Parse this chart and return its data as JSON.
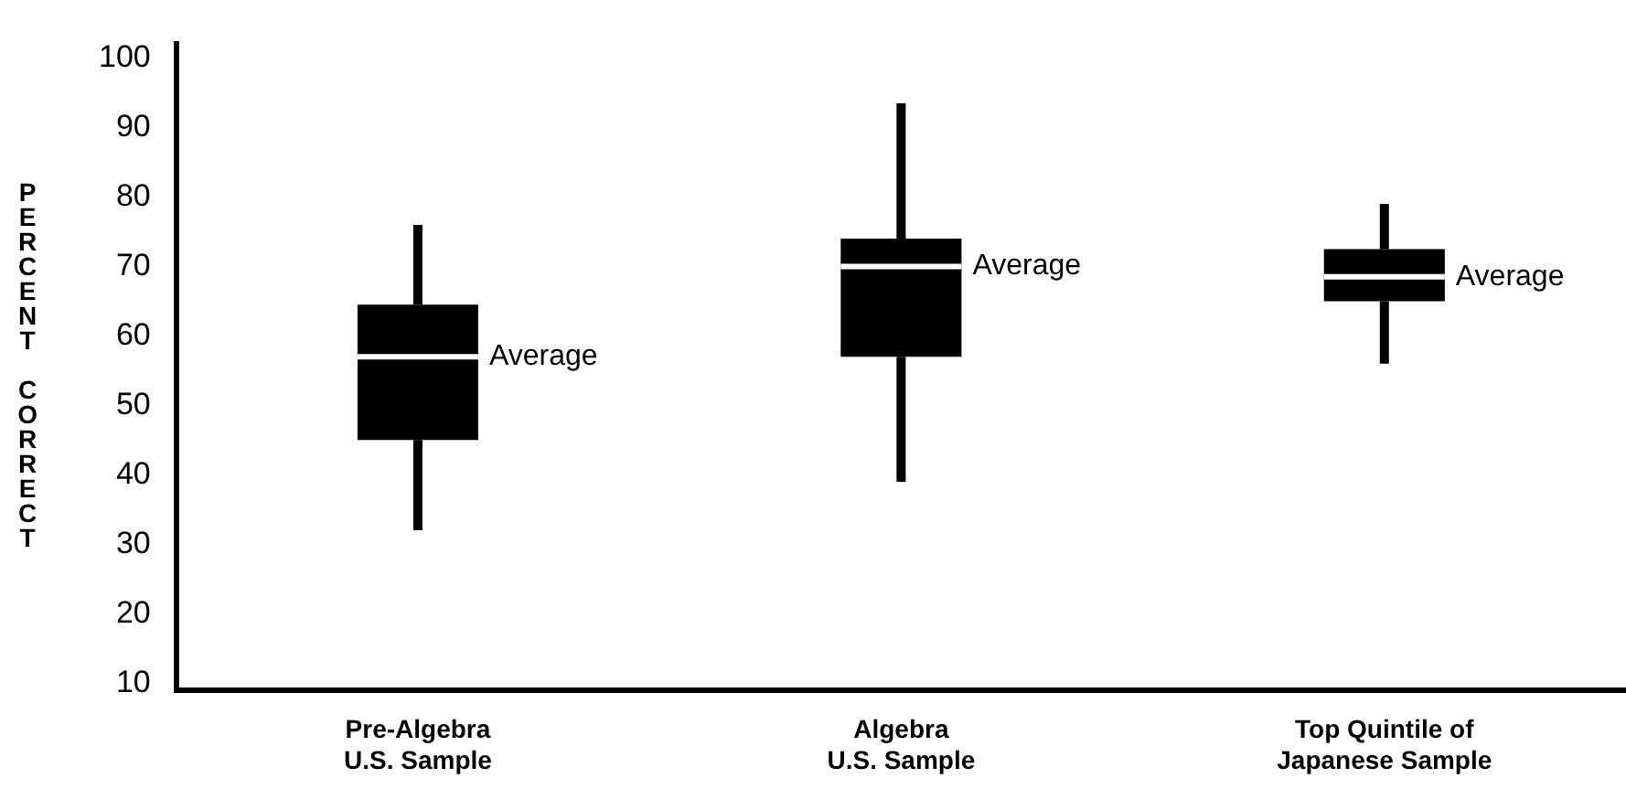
{
  "chart_data": {
    "type": "box",
    "ylabel": "PERCENT CORRECT",
    "categories": [
      "Pre-Algebra\nU.S. Sample",
      "Algebra\nU.S. Sample",
      "Top Quintile of\nJapanese Sample"
    ],
    "color": "#000000",
    "boxes": [
      {
        "low": 32,
        "q1": 45,
        "median": 57,
        "q3": 64.5,
        "high": 76
      },
      {
        "low": 39,
        "q1": 57,
        "median": 70,
        "q3": 74,
        "high": 93.5
      },
      {
        "low": 56,
        "q1": 65,
        "median": 68.5,
        "q3": 72.5,
        "high": 79
      }
    ],
    "ylim": [
      9,
      102
    ],
    "yticks": [
      10,
      20,
      30,
      40,
      50,
      60,
      70,
      80,
      90,
      100
    ],
    "grid": false,
    "legend": false,
    "annotations": [
      {
        "text": "Average",
        "x": "Pre-Algebra\nU.S. Sample",
        "y": 57
      },
      {
        "text": "Average",
        "x": "Algebra\nU.S. Sample",
        "y": 70
      },
      {
        "text": "Average",
        "x": "Top Quintile of\nJapanese Sample",
        "y": 68.5
      }
    ]
  }
}
